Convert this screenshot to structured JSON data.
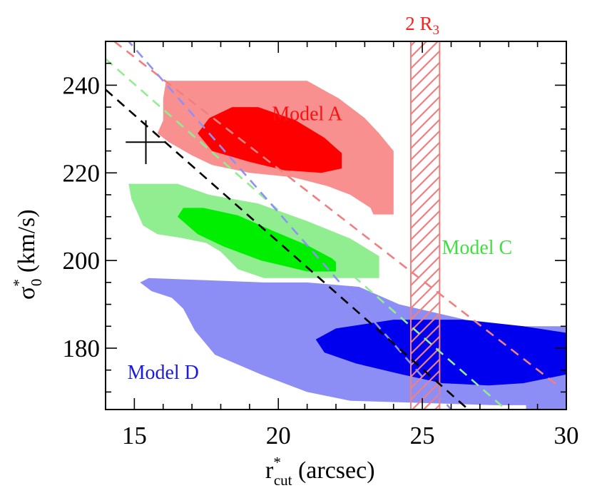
{
  "chart_data": {
    "type": "contour",
    "xlabel": {
      "main": "r",
      "sup": "*",
      "sub": "cut",
      "unit": " (arcsec)"
    },
    "ylabel": {
      "main": "σ",
      "sup": "*",
      "sub": "0",
      "unit": " (km/s)"
    },
    "xlim": [
      14,
      30
    ],
    "ylim": [
      166,
      250
    ],
    "x_ticks": [
      15,
      20,
      25,
      30
    ],
    "y_ticks": [
      180,
      200,
      220,
      240
    ],
    "marker": {
      "x": 15.4,
      "y": 227,
      "x_err": 0.7,
      "y_err": 5
    },
    "band": {
      "x_min": 24.6,
      "x_max": 25.6,
      "label": {
        "main": "2 R",
        "sub": "3"
      },
      "color": "#f08080"
    },
    "series": [
      {
        "name": "Model A",
        "label": "Model A",
        "label_pos": {
          "x": 21.0,
          "y": 232
        },
        "colors": {
          "outer": "#f89090",
          "inner": "#ff0000",
          "label": "#ff1010",
          "line": "#f08080"
        },
        "outer_contour": [
          [
            18.0,
            241
          ],
          [
            21.0,
            241
          ],
          [
            22.1,
            237
          ],
          [
            23.0,
            232.5
          ],
          [
            23.5,
            229
          ],
          [
            24.0,
            225
          ],
          [
            24.0,
            210.5
          ],
          [
            23.3,
            210.5
          ],
          [
            23.2,
            212
          ],
          [
            22.5,
            215
          ],
          [
            21.7,
            217
          ],
          [
            20.5,
            219
          ],
          [
            19.0,
            220
          ],
          [
            17.7,
            221.8
          ],
          [
            17.0,
            224
          ],
          [
            16.2,
            227
          ],
          [
            15.8,
            229
          ],
          [
            16.0,
            232
          ],
          [
            16.0,
            237
          ],
          [
            16.1,
            241
          ]
        ],
        "inner_contour": [
          [
            17.2,
            229
          ],
          [
            17.6,
            232.5
          ],
          [
            18.4,
            235
          ],
          [
            19.3,
            235
          ],
          [
            20.6,
            232
          ],
          [
            21.6,
            228
          ],
          [
            22.2,
            224.5
          ],
          [
            22.2,
            221
          ],
          [
            21.5,
            220
          ],
          [
            20.2,
            220.6
          ],
          [
            19.0,
            222.5
          ],
          [
            17.7,
            225
          ]
        ],
        "degeneracy_line": [
          [
            14.3,
            250
          ],
          [
            29.8,
            171
          ]
        ]
      },
      {
        "name": "Model C",
        "label": "Model C",
        "label_pos": {
          "x": 26.9,
          "y": 201.5
        },
        "colors": {
          "outer": "#90ee90",
          "inner": "#00ee00",
          "label": "#40e040",
          "line": "#90ee90"
        },
        "outer_contour": [
          [
            14.8,
            217.5
          ],
          [
            16.5,
            217.5
          ],
          [
            17.6,
            215
          ],
          [
            19.3,
            213
          ],
          [
            21.0,
            209
          ],
          [
            22.5,
            205
          ],
          [
            23.5,
            201
          ],
          [
            23.5,
            196
          ],
          [
            19.5,
            196
          ],
          [
            18.6,
            198
          ],
          [
            18.0,
            202
          ],
          [
            17.5,
            204
          ],
          [
            16.6,
            205.2
          ],
          [
            15.8,
            206
          ],
          [
            15.3,
            208
          ],
          [
            14.9,
            214
          ]
        ],
        "inner_contour": [
          [
            16.5,
            210
          ],
          [
            16.7,
            212
          ],
          [
            17.4,
            212
          ],
          [
            18.6,
            210.3
          ],
          [
            19.8,
            206.8
          ],
          [
            21.0,
            203.5
          ],
          [
            22.0,
            200
          ],
          [
            22.0,
            197.5
          ],
          [
            21.0,
            197.5
          ],
          [
            19.4,
            200
          ],
          [
            18.1,
            203.2
          ],
          [
            17.2,
            206
          ]
        ],
        "degeneracy_line": [
          [
            14.0,
            246
          ],
          [
            27.9,
            166
          ]
        ]
      },
      {
        "name": "Model D",
        "label": "Model D",
        "label_pos": {
          "x": 16.0,
          "y": 173
        },
        "colors": {
          "outer": "#8d8df6",
          "inner": "#0000ee",
          "label": "#1a1ae0",
          "line": "#9090f8"
        },
        "outer_contour": [
          [
            15.5,
            196
          ],
          [
            17.5,
            195.5
          ],
          [
            19.5,
            195
          ],
          [
            21.0,
            195
          ],
          [
            22.8,
            194
          ],
          [
            24.2,
            190
          ],
          [
            26.5,
            186.5
          ],
          [
            28.5,
            185
          ],
          [
            30.0,
            185
          ],
          [
            30.0,
            166
          ],
          [
            28.6,
            166
          ],
          [
            28.6,
            167
          ],
          [
            27.5,
            167
          ],
          [
            22.5,
            168
          ],
          [
            21.0,
            170
          ],
          [
            19.4,
            174
          ],
          [
            17.8,
            178.5
          ],
          [
            17.1,
            184
          ],
          [
            16.7,
            189
          ],
          [
            16.3,
            191.5
          ],
          [
            15.6,
            193
          ],
          [
            15.2,
            195
          ]
        ],
        "inner_contour": [
          [
            21.3,
            182
          ],
          [
            22.0,
            184.5
          ],
          [
            24.0,
            186.5
          ],
          [
            26.4,
            186.5
          ],
          [
            28.5,
            185
          ],
          [
            30.0,
            183.5
          ],
          [
            30.0,
            174
          ],
          [
            28.5,
            172
          ],
          [
            27.3,
            171.5
          ],
          [
            25.7,
            172
          ],
          [
            24.3,
            174
          ],
          [
            22.7,
            176.5
          ],
          [
            21.6,
            179
          ]
        ],
        "degeneracy_line": [
          [
            14.0,
            256
          ],
          [
            26.0,
            166
          ]
        ]
      },
      {
        "name": "Black",
        "label": "",
        "colors": {
          "line": "#000000"
        },
        "degeneracy_line": [
          [
            14.0,
            239
          ],
          [
            26.6,
            166
          ]
        ]
      }
    ]
  }
}
